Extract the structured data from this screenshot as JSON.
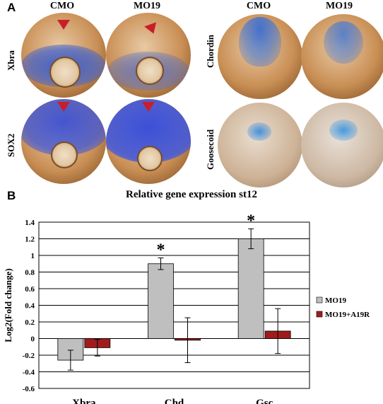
{
  "panel_a": {
    "label": "A",
    "columns_left": [
      "CMO",
      "MO19"
    ],
    "columns_right": [
      "CMO",
      "MO19"
    ],
    "rows_left": [
      "Xbra",
      "SOX2"
    ],
    "rows_right": [
      "Chordin",
      "Goosecoid"
    ]
  },
  "panel_b": {
    "label": "B"
  },
  "chart_data": {
    "type": "bar",
    "title": "Relative gene expression st12",
    "ylabel": "Log2(Fold change)",
    "xlabel": "",
    "categories": [
      "Xbra",
      "Chd",
      "Gsc"
    ],
    "ylim": [
      -0.6,
      1.4
    ],
    "yticks": [
      "1.4",
      "1.2",
      "1",
      "0.8",
      "0.6",
      "0.4",
      "0.2",
      "0",
      "-0.2",
      "-0.4",
      "-0.6"
    ],
    "grid": true,
    "legend_position": "right",
    "series": [
      {
        "name": "MO19",
        "color": "#bfbfbf",
        "values": [
          -0.26,
          0.9,
          1.2
        ],
        "err": [
          0.12,
          0.07,
          0.12
        ]
      },
      {
        "name": "MO19+A19R",
        "color": "#a01c1c",
        "values": [
          -0.11,
          -0.02,
          0.09
        ],
        "err": [
          0.1,
          0.27,
          0.27
        ]
      }
    ],
    "annotations": [
      {
        "category": "Chd",
        "text": "*"
      },
      {
        "category": "Gsc",
        "text": "*"
      }
    ]
  }
}
